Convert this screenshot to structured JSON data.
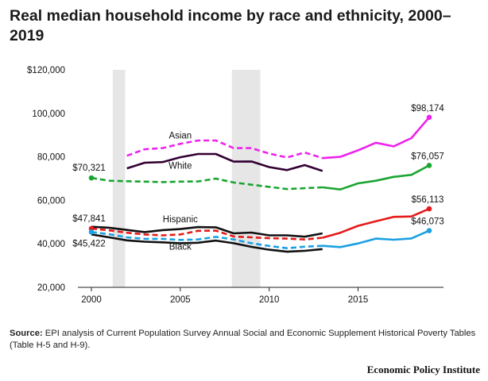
{
  "chart_data": {
    "type": "line",
    "title": "Real median household income by race and ethnicity, 2000–2019",
    "xlabel": "",
    "ylabel": "",
    "xlim": [
      2000,
      2019
    ],
    "ylim": [
      20000,
      120000
    ],
    "x_ticks": [
      2000,
      2005,
      2010,
      2015
    ],
    "y_ticks": [
      {
        "value": 20000,
        "label": "20,000"
      },
      {
        "value": 40000,
        "label": "40,000"
      },
      {
        "value": 60000,
        "label": "60,000"
      },
      {
        "value": 80000,
        "label": "80,000"
      },
      {
        "value": 100000,
        "label": "100,000"
      },
      {
        "value": 120000,
        "label": "$120,000"
      }
    ],
    "grid": false,
    "recession_shading": [
      [
        2001.2,
        2001.9
      ],
      [
        2007.9,
        2009.5
      ]
    ],
    "series": [
      {
        "name": "Asian",
        "color": "#ee22ee",
        "dashed": {
          "x": [
            2002,
            2003,
            2004,
            2005,
            2006,
            2007,
            2008,
            2009,
            2010,
            2011,
            2012,
            2013
          ],
          "y": [
            80500,
            83500,
            84000,
            86000,
            87500,
            87500,
            84000,
            84000,
            81500,
            79700,
            82000,
            79400
          ]
        },
        "solid": {
          "x": [
            2013,
            2014,
            2015,
            2016,
            2017,
            2018,
            2019
          ],
          "y": [
            79400,
            80000,
            83000,
            86500,
            84800,
            88600,
            98174
          ]
        },
        "end_label": "$98,174"
      },
      {
        "name": "White",
        "color": "#1aa531",
        "pre2013_color": "#330033",
        "pre2013_solid": {
          "x": [
            2002,
            2003,
            2004,
            2005,
            2006,
            2007,
            2008,
            2009,
            2010,
            2011,
            2012,
            2013
          ],
          "y": [
            74700,
            77300,
            77600,
            79800,
            81300,
            81300,
            77800,
            77900,
            75300,
            73900,
            76200,
            73500
          ]
        },
        "dashed": {
          "x": [
            2000,
            2001,
            2002,
            2003,
            2004,
            2005,
            2006,
            2007,
            2008,
            2009,
            2010,
            2011,
            2012,
            2013
          ],
          "y": [
            70321,
            69000,
            68800,
            68600,
            68400,
            68600,
            68700,
            70000,
            68200,
            67200,
            66200,
            65200,
            65600,
            66000
          ]
        },
        "solid": {
          "x": [
            2013,
            2014,
            2015,
            2016,
            2017,
            2018,
            2019
          ],
          "y": [
            66000,
            65000,
            67800,
            69000,
            70800,
            71700,
            76057
          ]
        },
        "start_label": "$70,321",
        "end_label": "$76,057"
      },
      {
        "name": "Hispanic",
        "color": "#e61a1a",
        "upper_color": "#111111",
        "upper_solid": {
          "x": [
            2000,
            2001,
            2002,
            2003,
            2004,
            2005,
            2006,
            2007,
            2008,
            2009,
            2010,
            2011,
            2012,
            2013
          ],
          "y": [
            47841,
            47400,
            46400,
            45400,
            46300,
            46800,
            47700,
            47600,
            44800,
            45200,
            43900,
            43900,
            43300,
            44800
          ]
        },
        "dashed": {
          "x": [
            2000,
            2001,
            2002,
            2003,
            2004,
            2005,
            2006,
            2007,
            2008,
            2009,
            2010,
            2011,
            2012,
            2013
          ],
          "y": [
            47000,
            46200,
            45100,
            44300,
            43900,
            44300,
            46000,
            46100,
            43400,
            43000,
            42600,
            42400,
            42000,
            42800
          ]
        },
        "solid": {
          "x": [
            2013,
            2014,
            2015,
            2016,
            2017,
            2018,
            2019
          ],
          "y": [
            42800,
            45100,
            48300,
            50400,
            52400,
            52600,
            56113
          ]
        },
        "start_label": "$47,841",
        "end_label": "$56,113"
      },
      {
        "name": "Black",
        "color": "#1ba0e2",
        "lower_color": "#111111",
        "lower_solid": {
          "x": [
            2000,
            2001,
            2002,
            2003,
            2004,
            2005,
            2006,
            2007,
            2008,
            2009,
            2010,
            2011,
            2012,
            2013
          ],
          "y": [
            44300,
            43000,
            41600,
            41000,
            40700,
            40300,
            40500,
            41500,
            40300,
            38600,
            37300,
            36400,
            36800,
            37600
          ]
        },
        "dashed": {
          "x": [
            2000,
            2001,
            2002,
            2003,
            2004,
            2005,
            2006,
            2007,
            2008,
            2009,
            2010,
            2011,
            2012,
            2013
          ],
          "y": [
            45422,
            44400,
            43000,
            42300,
            42300,
            41800,
            42000,
            43200,
            42000,
            40300,
            39000,
            38000,
            38700,
            39100
          ]
        },
        "solid": {
          "x": [
            2013,
            2014,
            2015,
            2016,
            2017,
            2018,
            2019
          ],
          "y": [
            39100,
            38500,
            40200,
            42400,
            41900,
            42500,
            46073
          ]
        },
        "start_label": "$45,422",
        "end_label": "$46,073"
      }
    ],
    "series_labels": [
      {
        "text": "Asian",
        "x": 2005,
        "y": 88500
      },
      {
        "text": "White",
        "x": 2005,
        "y": 74500
      },
      {
        "text": "Hispanic",
        "x": 2005,
        "y": 50000
      },
      {
        "text": "Black",
        "x": 2005,
        "y": 37300
      }
    ],
    "source_label": "Source:",
    "source_text": "EPI analysis of Current Population Survey Annual Social and Economic Supplement Historical Poverty Tables (Table H-5 and H-9).",
    "publisher": "Economic Policy Institute"
  }
}
